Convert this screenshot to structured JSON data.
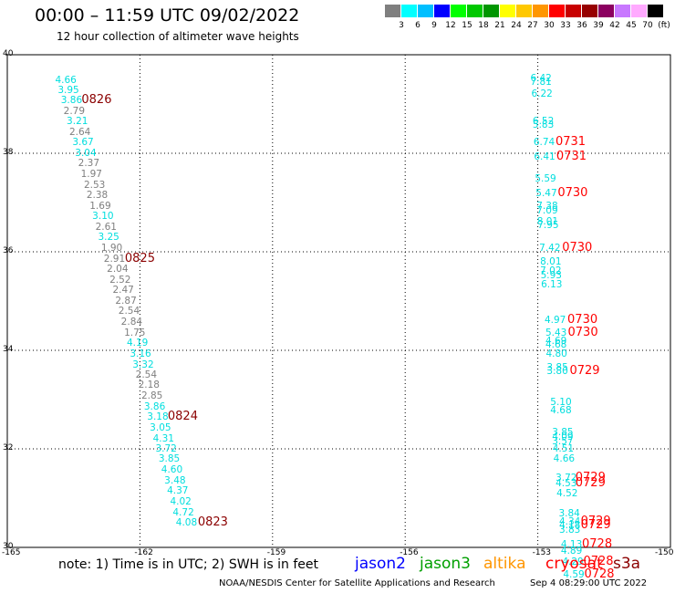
{
  "title": "00:00 – 11:59 UTC 09/02/2022",
  "subtitle": "12 hour collection of altimeter wave heights",
  "colorbar": {
    "labels": [
      "3",
      "6",
      "9",
      "12",
      "15",
      "18",
      "21",
      "24",
      "27",
      "30",
      "33",
      "36",
      "39",
      "42",
      "45",
      "70"
    ],
    "unit": "(ft)",
    "colors": [
      "#7f7f7f",
      "#00ffff",
      "#00bfff",
      "#0000ff",
      "#00ff00",
      "#00c800",
      "#009600",
      "#ffff00",
      "#ffc800",
      "#ff9600",
      "#ff0000",
      "#c80000",
      "#960000",
      "#8c0060",
      "#c878ff",
      "#ffaaff",
      "#000000"
    ]
  },
  "axes": {
    "x_ticks": [
      "-165",
      "-162",
      "-159",
      "-156",
      "-153",
      "-150"
    ],
    "y_ticks": [
      "40",
      "38",
      "36",
      "34",
      "32",
      "30"
    ],
    "lon_range": [
      -165,
      -150
    ],
    "lat_range": [
      30,
      40
    ]
  },
  "tracks": [
    {
      "labels": [
        {
          "v": "4.66",
          "lon": -163.67,
          "lat": 39.49,
          "c": "#00dede"
        },
        {
          "v": "3.95",
          "lon": -163.61,
          "lat": 39.28,
          "c": "#00dede"
        },
        {
          "v": "3.86",
          "lon": -163.54,
          "lat": 39.07,
          "c": "#00dede"
        },
        {
          "v": "2.79",
          "lon": -163.48,
          "lat": 38.86,
          "c": "#7f7f7f"
        },
        {
          "v": "3.21",
          "lon": -163.41,
          "lat": 38.64,
          "c": "#00dede"
        },
        {
          "v": "2.64",
          "lon": -163.35,
          "lat": 38.43,
          "c": "#7f7f7f"
        },
        {
          "v": "3.67",
          "lon": -163.28,
          "lat": 38.22,
          "c": "#00dede"
        },
        {
          "v": "3.04",
          "lon": -163.22,
          "lat": 38.0,
          "c": "#00dede"
        },
        {
          "v": "2.37",
          "lon": -163.15,
          "lat": 37.79,
          "c": "#7f7f7f"
        },
        {
          "v": "1.97",
          "lon": -163.09,
          "lat": 37.58,
          "c": "#7f7f7f"
        },
        {
          "v": "2.53",
          "lon": -163.02,
          "lat": 37.36,
          "c": "#7f7f7f"
        },
        {
          "v": "2.38",
          "lon": -162.96,
          "lat": 37.15,
          "c": "#7f7f7f"
        },
        {
          "v": "1.69",
          "lon": -162.89,
          "lat": 36.93,
          "c": "#7f7f7f"
        },
        {
          "v": "3.10",
          "lon": -162.83,
          "lat": 36.72,
          "c": "#00dede"
        },
        {
          "v": "2.61",
          "lon": -162.76,
          "lat": 36.5,
          "c": "#7f7f7f"
        },
        {
          "v": "3.25",
          "lon": -162.7,
          "lat": 36.29,
          "c": "#00dede"
        },
        {
          "v": "1.90",
          "lon": -162.63,
          "lat": 36.07,
          "c": "#7f7f7f"
        },
        {
          "v": "2.91",
          "lon": -162.57,
          "lat": 35.86,
          "c": "#7f7f7f"
        },
        {
          "v": "2.04",
          "lon": -162.5,
          "lat": 35.64,
          "c": "#7f7f7f"
        },
        {
          "v": "2.52",
          "lon": -162.44,
          "lat": 35.43,
          "c": "#7f7f7f"
        },
        {
          "v": "2.47",
          "lon": -162.37,
          "lat": 35.22,
          "c": "#7f7f7f"
        },
        {
          "v": "2.87",
          "lon": -162.31,
          "lat": 35.0,
          "c": "#7f7f7f"
        },
        {
          "v": "2.54",
          "lon": -162.24,
          "lat": 34.79,
          "c": "#7f7f7f"
        },
        {
          "v": "2.84",
          "lon": -162.18,
          "lat": 34.57,
          "c": "#7f7f7f"
        },
        {
          "v": "1.75",
          "lon": -162.11,
          "lat": 34.36,
          "c": "#7f7f7f"
        },
        {
          "v": "4.19",
          "lon": -162.05,
          "lat": 34.14,
          "c": "#00dede"
        },
        {
          "v": "3.16",
          "lon": -161.98,
          "lat": 33.93,
          "c": "#00dede"
        },
        {
          "v": "3.32",
          "lon": -161.92,
          "lat": 33.71,
          "c": "#00dede"
        },
        {
          "v": "2.54",
          "lon": -161.85,
          "lat": 33.5,
          "c": "#7f7f7f"
        },
        {
          "v": "2.18",
          "lon": -161.79,
          "lat": 33.29,
          "c": "#7f7f7f"
        },
        {
          "v": "2.85",
          "lon": -161.72,
          "lat": 33.07,
          "c": "#7f7f7f"
        },
        {
          "v": "3.86",
          "lon": -161.66,
          "lat": 32.86,
          "c": "#00dede"
        },
        {
          "v": "3.18",
          "lon": -161.59,
          "lat": 32.64,
          "c": "#00dede"
        },
        {
          "v": "3.05",
          "lon": -161.53,
          "lat": 32.43,
          "c": "#00dede"
        },
        {
          "v": "4.31",
          "lon": -161.46,
          "lat": 32.21,
          "c": "#00dede"
        },
        {
          "v": "3.72",
          "lon": -161.4,
          "lat": 32.0,
          "c": "#00dede"
        },
        {
          "v": "3.85",
          "lon": -161.33,
          "lat": 31.79,
          "c": "#00dede"
        },
        {
          "v": "4.60",
          "lon": -161.27,
          "lat": 31.57,
          "c": "#00dede"
        },
        {
          "v": "3.48",
          "lon": -161.2,
          "lat": 31.36,
          "c": "#00dede"
        },
        {
          "v": "4.37",
          "lon": -161.14,
          "lat": 31.14,
          "c": "#00dede"
        },
        {
          "v": "4.02",
          "lon": -161.07,
          "lat": 30.93,
          "c": "#00dede"
        },
        {
          "v": "4.72",
          "lon": -161.01,
          "lat": 30.71,
          "c": "#00dede"
        },
        {
          "v": "4.08",
          "lon": -160.94,
          "lat": 30.5,
          "c": "#00dede"
        }
      ],
      "times": [
        {
          "t": "0826",
          "lon": -162.97,
          "lat": 39.07,
          "c": "#8b0000"
        },
        {
          "t": "0825",
          "lon": -161.99,
          "lat": 35.86,
          "c": "#8b0000"
        },
        {
          "t": "0824",
          "lon": -161.02,
          "lat": 32.64,
          "c": "#8b0000"
        },
        {
          "t": "0823",
          "lon": -160.34,
          "lat": 30.5,
          "c": "#8b0000"
        }
      ]
    },
    {
      "labels": [
        {
          "v": "6.42",
          "lon": -152.92,
          "lat": 39.52,
          "c": "#00dede"
        },
        {
          "v": "7.81",
          "lon": -152.92,
          "lat": 39.44,
          "c": "#00dede"
        },
        {
          "v": "6.22",
          "lon": -152.9,
          "lat": 39.2,
          "c": "#00dede"
        },
        {
          "v": "6.52",
          "lon": -152.87,
          "lat": 38.65,
          "c": "#00dede"
        },
        {
          "v": "5.83",
          "lon": -152.87,
          "lat": 38.58,
          "c": "#00dede"
        },
        {
          "v": "6.74",
          "lon": -152.85,
          "lat": 38.22,
          "c": "#00dede"
        },
        {
          "v": "6.41",
          "lon": -152.84,
          "lat": 37.93,
          "c": "#00dede"
        },
        {
          "v": "5.59",
          "lon": -152.82,
          "lat": 37.49,
          "c": "#00dede"
        },
        {
          "v": "5.47",
          "lon": -152.8,
          "lat": 37.19,
          "c": "#00dede"
        },
        {
          "v": "7.38",
          "lon": -152.78,
          "lat": 36.92,
          "c": "#00dede"
        },
        {
          "v": "7.09",
          "lon": -152.78,
          "lat": 36.84,
          "c": "#00dede"
        },
        {
          "v": "8.01",
          "lon": -152.77,
          "lat": 36.62,
          "c": "#00dede"
        },
        {
          "v": "7.95",
          "lon": -152.76,
          "lat": 36.54,
          "c": "#00dede"
        },
        {
          "v": "7.42",
          "lon": -152.72,
          "lat": 36.08,
          "c": "#00dede"
        },
        {
          "v": "8.01",
          "lon": -152.7,
          "lat": 35.8,
          "c": "#00dede"
        },
        {
          "v": "7.02",
          "lon": -152.7,
          "lat": 35.62,
          "c": "#00dede"
        },
        {
          "v": "5.93",
          "lon": -152.69,
          "lat": 35.52,
          "c": "#00dede"
        },
        {
          "v": "6.13",
          "lon": -152.68,
          "lat": 35.34,
          "c": "#00dede"
        },
        {
          "v": "4.97",
          "lon": -152.6,
          "lat": 34.62,
          "c": "#00dede"
        },
        {
          "v": "5.43",
          "lon": -152.58,
          "lat": 34.35,
          "c": "#00dede"
        },
        {
          "v": "4.69",
          "lon": -152.58,
          "lat": 34.18,
          "c": "#00dede"
        },
        {
          "v": "4.68",
          "lon": -152.58,
          "lat": 34.11,
          "c": "#00dede"
        },
        {
          "v": "4.80",
          "lon": -152.57,
          "lat": 33.92,
          "c": "#00dede"
        },
        {
          "v": "3.85",
          "lon": -152.55,
          "lat": 33.64,
          "c": "#00dede"
        },
        {
          "v": "3.80",
          "lon": -152.55,
          "lat": 33.57,
          "c": "#00dede"
        },
        {
          "v": "5.10",
          "lon": -152.47,
          "lat": 32.95,
          "c": "#00dede"
        },
        {
          "v": "4.68",
          "lon": -152.47,
          "lat": 32.77,
          "c": "#00dede"
        },
        {
          "v": "3.85",
          "lon": -152.43,
          "lat": 32.33,
          "c": "#00dede"
        },
        {
          "v": "4.09",
          "lon": -152.43,
          "lat": 32.24,
          "c": "#00dede"
        },
        {
          "v": "3.57",
          "lon": -152.43,
          "lat": 32.14,
          "c": "#00dede"
        },
        {
          "v": "4.51",
          "lon": -152.42,
          "lat": 32.0,
          "c": "#00dede"
        },
        {
          "v": "4.66",
          "lon": -152.4,
          "lat": 31.79,
          "c": "#00dede"
        },
        {
          "v": "3.72",
          "lon": -152.35,
          "lat": 31.41,
          "c": "#00dede"
        },
        {
          "v": "4.53",
          "lon": -152.35,
          "lat": 31.29,
          "c": "#00dede"
        },
        {
          "v": "4.52",
          "lon": -152.33,
          "lat": 31.1,
          "c": "#00dede"
        },
        {
          "v": "3.84",
          "lon": -152.28,
          "lat": 30.69,
          "c": "#00dede"
        },
        {
          "v": "4.34",
          "lon": -152.27,
          "lat": 30.52,
          "c": "#00dede"
        },
        {
          "v": "4.18",
          "lon": -152.27,
          "lat": 30.45,
          "c": "#00dede"
        },
        {
          "v": "3.83",
          "lon": -152.27,
          "lat": 30.36,
          "c": "#00dede"
        },
        {
          "v": "4.13",
          "lon": -152.23,
          "lat": 30.05,
          "c": "#00dede"
        },
        {
          "v": "4.89",
          "lon": -152.23,
          "lat": 29.93,
          "c": "#00dede"
        },
        {
          "v": "4.29",
          "lon": -152.2,
          "lat": 29.7,
          "c": "#00dede"
        },
        {
          "v": "4.59",
          "lon": -152.18,
          "lat": 29.45,
          "c": "#00dede"
        }
      ],
      "times": [
        {
          "t": "0731",
          "lon": -152.25,
          "lat": 38.22,
          "c": "#ff0000"
        },
        {
          "t": "0731",
          "lon": -152.23,
          "lat": 37.93,
          "c": "#ff0000"
        },
        {
          "t": "0730",
          "lon": -152.2,
          "lat": 37.19,
          "c": "#ff0000"
        },
        {
          "t": "0730",
          "lon": -152.1,
          "lat": 36.08,
          "c": "#ff0000"
        },
        {
          "t": "0730",
          "lon": -151.98,
          "lat": 34.62,
          "c": "#ff0000"
        },
        {
          "t": "0730",
          "lon": -151.97,
          "lat": 34.35,
          "c": "#ff0000"
        },
        {
          "t": "0729",
          "lon": -151.93,
          "lat": 33.57,
          "c": "#ff0000"
        },
        {
          "t": "0729",
          "lon": -151.8,
          "lat": 31.41,
          "c": "#ff0000"
        },
        {
          "t": "0729",
          "lon": -151.8,
          "lat": 31.29,
          "c": "#ff0000"
        },
        {
          "t": "0729",
          "lon": -151.68,
          "lat": 30.52,
          "c": "#ff0000"
        },
        {
          "t": "0729",
          "lon": -151.68,
          "lat": 30.45,
          "c": "#ff0000"
        },
        {
          "t": "0728",
          "lon": -151.65,
          "lat": 30.05,
          "c": "#ff0000"
        },
        {
          "t": "0728",
          "lon": -151.62,
          "lat": 29.7,
          "c": "#ff0000"
        },
        {
          "t": "0728",
          "lon": -151.6,
          "lat": 29.45,
          "c": "#ff0000"
        }
      ]
    }
  ],
  "note": "note: 1) Time is in UTC; 2) SWH is in feet",
  "satellites": [
    {
      "name": "jason2",
      "c": "#0000ff"
    },
    {
      "name": "jason3",
      "c": "#00a000"
    },
    {
      "name": "altika",
      "c": "#ff9600"
    },
    {
      "name": "cryosat",
      "c": "#ff0000"
    },
    {
      "name": "s3a",
      "c": "#8b0000"
    }
  ],
  "credit": "NOAA/NESDIS Center for Satellite Applications and Research",
  "timestamp": "Sep  4 08:29:00 UTC 2022"
}
